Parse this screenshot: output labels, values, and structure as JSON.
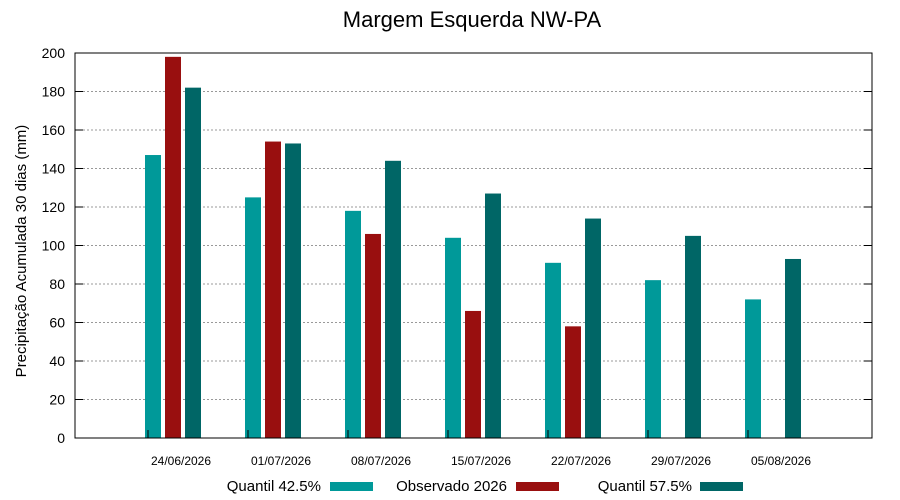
{
  "chart_data": {
    "type": "bar",
    "title": "Margem Esquerda NW-PA",
    "xlabel": "",
    "ylabel": "Precipitação Acumulada 30 dias (mm)",
    "ylim": [
      0,
      200
    ],
    "yticks": [
      0,
      20,
      40,
      60,
      80,
      100,
      120,
      140,
      160,
      180,
      200
    ],
    "grid": true,
    "legend_position": "bottom",
    "categories": [
      "24/06/2026",
      "01/07/2026",
      "08/07/2026",
      "15/07/2026",
      "22/07/2026",
      "29/07/2026",
      "05/08/2026"
    ],
    "series": [
      {
        "name": "Quantil 42.5%",
        "color": "#009999",
        "values": [
          147,
          125,
          118,
          104,
          91,
          82,
          72
        ]
      },
      {
        "name": "Observado 2026",
        "color": "#990f0f",
        "values": [
          198,
          154,
          106,
          66,
          58,
          null,
          null
        ]
      },
      {
        "name": "Quantil 57.5%",
        "color": "#006666",
        "values": [
          182,
          153,
          144,
          127,
          114,
          105,
          93
        ]
      }
    ]
  }
}
